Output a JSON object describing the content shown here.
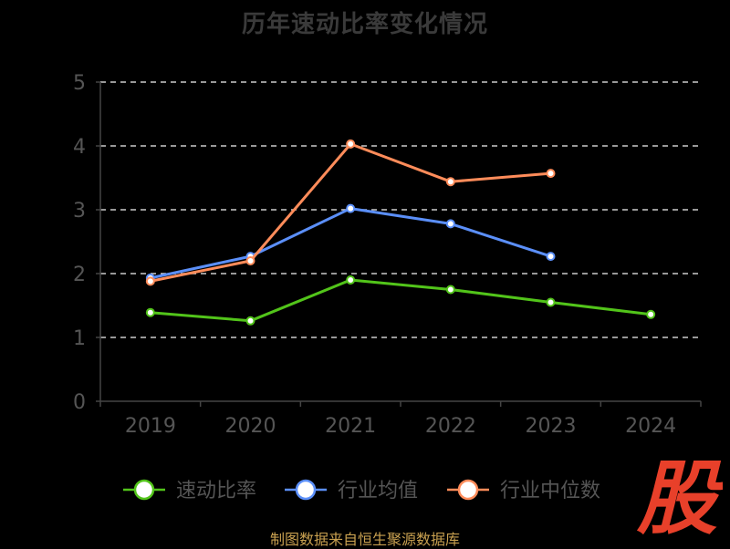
{
  "colors": {
    "background": "#000000",
    "grid": "#cccccc",
    "axis": "#444444",
    "tick_text": "#555555",
    "title": "#3a3a3a",
    "source": "#c8a050",
    "watermark": "#e8402a"
  },
  "watermark": {
    "char": "股"
  },
  "source_note": "制图数据来自恒生聚源数据库",
  "chart_data": {
    "type": "line",
    "title": "历年速动比率变化情况",
    "xlabel": "",
    "ylabel": "",
    "categories": [
      "2019",
      "2020",
      "2021",
      "2022",
      "2023",
      "2024"
    ],
    "ylim": [
      0,
      5
    ],
    "yticks": [
      0,
      1,
      2,
      3,
      4,
      5
    ],
    "grid": true,
    "legend_position": "bottom",
    "series": [
      {
        "name": "速动比率",
        "color": "#52c41a",
        "values": [
          1.39,
          1.26,
          1.9,
          1.75,
          1.55,
          1.36
        ]
      },
      {
        "name": "行业均值",
        "color": "#5b8ff9",
        "values": [
          1.93,
          2.27,
          3.02,
          2.78,
          2.27,
          null
        ]
      },
      {
        "name": "行业中位数",
        "color": "#ff8c5a",
        "values": [
          1.88,
          2.2,
          4.03,
          3.44,
          3.57,
          null
        ]
      }
    ]
  }
}
